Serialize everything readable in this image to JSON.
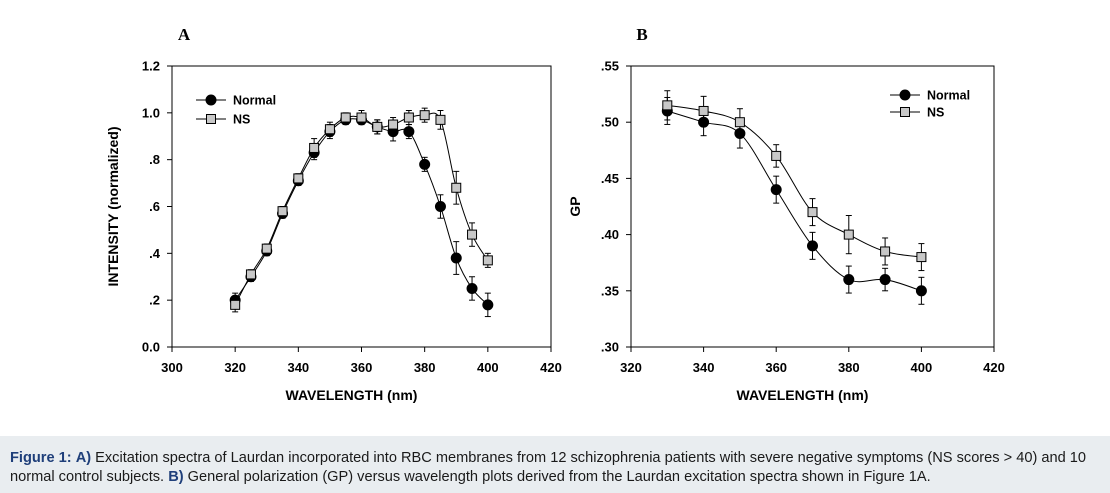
{
  "chart_data": [
    {
      "type": "line",
      "panel_label": "A",
      "xlabel": "WAVELENGTH (nm)",
      "ylabel": "INTENSITY (normalized)",
      "xlim": [
        300,
        420
      ],
      "ylim": [
        0.0,
        1.2
      ],
      "xticks": [
        300,
        320,
        340,
        360,
        380,
        400,
        420
      ],
      "xtick_labels": [
        "300",
        "320",
        "340",
        "360",
        "380",
        "400",
        "420"
      ],
      "yticks": [
        0.0,
        0.2,
        0.4,
        0.6,
        0.8,
        1.0,
        1.2
      ],
      "ytick_labels": [
        "0.0",
        ".2",
        ".4",
        ".6",
        ".8",
        "1.0",
        "1.2"
      ],
      "grid": false,
      "legend_position": "top-left",
      "series": [
        {
          "name": "Normal",
          "marker": "filled-circle",
          "color": "#000000",
          "x": [
            320,
            325,
            330,
            335,
            340,
            345,
            350,
            355,
            360,
            365,
            370,
            375,
            380,
            385,
            390,
            395,
            400
          ],
          "y": [
            0.2,
            0.3,
            0.41,
            0.57,
            0.71,
            0.83,
            0.92,
            0.97,
            0.97,
            0.94,
            0.92,
            0.92,
            0.78,
            0.6,
            0.38,
            0.25,
            0.18
          ],
          "err": [
            0.03,
            0.02,
            0.02,
            0.02,
            0.02,
            0.03,
            0.03,
            0.02,
            0.02,
            0.03,
            0.04,
            0.03,
            0.03,
            0.05,
            0.07,
            0.05,
            0.05
          ]
        },
        {
          "name": "NS",
          "marker": "open-square",
          "color": "#c8c8c8",
          "x": [
            320,
            325,
            330,
            335,
            340,
            345,
            350,
            355,
            360,
            365,
            370,
            375,
            380,
            385,
            390,
            395,
            400
          ],
          "y": [
            0.18,
            0.31,
            0.42,
            0.58,
            0.72,
            0.85,
            0.93,
            0.98,
            0.98,
            0.94,
            0.95,
            0.98,
            0.99,
            0.97,
            0.68,
            0.48,
            0.37
          ],
          "err": [
            0.03,
            0.02,
            0.02,
            0.02,
            0.02,
            0.04,
            0.03,
            0.02,
            0.03,
            0.03,
            0.03,
            0.03,
            0.03,
            0.04,
            0.07,
            0.05,
            0.03
          ]
        }
      ]
    },
    {
      "type": "line",
      "panel_label": "B",
      "xlabel": "WAVELENGTH (nm)",
      "ylabel": "GP",
      "xlim": [
        320,
        420
      ],
      "ylim": [
        0.3,
        0.55
      ],
      "xticks": [
        320,
        340,
        360,
        380,
        400,
        420
      ],
      "xtick_labels": [
        "320",
        "340",
        "360",
        "380",
        "400",
        "420"
      ],
      "yticks": [
        0.3,
        0.35,
        0.4,
        0.45,
        0.5,
        0.55
      ],
      "ytick_labels": [
        ".30",
        ".35",
        ".40",
        ".45",
        ".50",
        ".55"
      ],
      "grid": false,
      "legend_position": "top-right",
      "series": [
        {
          "name": "Normal",
          "marker": "filled-circle",
          "color": "#000000",
          "x": [
            330,
            340,
            350,
            360,
            370,
            380,
            390,
            400
          ],
          "y": [
            0.51,
            0.5,
            0.49,
            0.44,
            0.39,
            0.36,
            0.36,
            0.35
          ],
          "err": [
            0.012,
            0.012,
            0.013,
            0.012,
            0.012,
            0.012,
            0.01,
            0.012
          ]
        },
        {
          "name": "NS",
          "marker": "open-square",
          "color": "#c8c8c8",
          "x": [
            330,
            340,
            350,
            360,
            370,
            380,
            390,
            400
          ],
          "y": [
            0.515,
            0.51,
            0.5,
            0.47,
            0.42,
            0.4,
            0.385,
            0.38
          ],
          "err": [
            0.013,
            0.013,
            0.012,
            0.01,
            0.012,
            0.017,
            0.012,
            0.012
          ]
        }
      ]
    }
  ],
  "caption": {
    "fig_label": "Figure 1:",
    "part_a_label": "A)",
    "part_a_text": "Excitation spectra of Laurdan incorporated into RBC membranes from 12 schizophrenia patients with severe negative symptoms (NS scores > 40) and 10 normal control subjects.",
    "part_b_label": "B)",
    "part_b_text": "General polarization (GP) versus wavelength plots derived from the Laurdan excitation spectra shown in Figure 1A."
  },
  "colors": {
    "page_background": "#e9edf0",
    "panel_background": "#ffffff",
    "caption_label": "#1f3f7a"
  }
}
